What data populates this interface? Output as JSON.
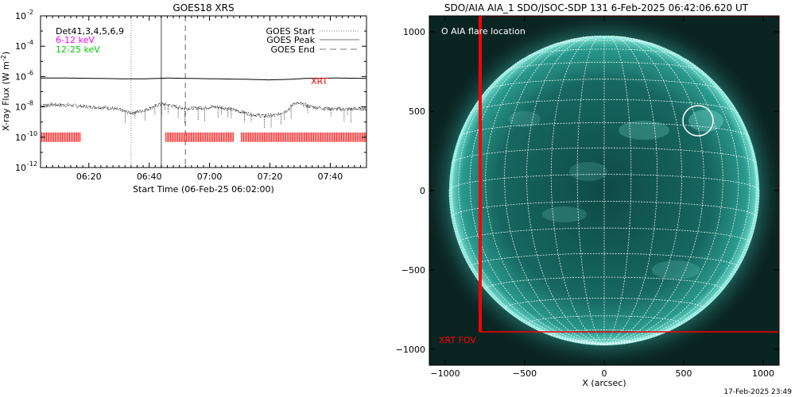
{
  "chart_data": [
    {
      "type": "line",
      "title": "GOES18 XRS",
      "xlabel": "Start Time (06-Feb-25 06:02:00)",
      "ylabel": "X-ray Flux (W m",
      "ylabel_sup": "-2",
      "ylabel_end": ")",
      "yscale": "log",
      "ylim_exp": [
        -12,
        -2
      ],
      "xlim_min": [
        2,
        110
      ],
      "x_ticks": [
        {
          "min": 18,
          "label": "06:20"
        },
        {
          "min": 38,
          "label": "06:40"
        },
        {
          "min": 58,
          "label": "07:00"
        },
        {
          "min": 78,
          "label": "07:20"
        },
        {
          "min": 98,
          "label": "07:40"
        }
      ],
      "y_ticks": [
        {
          "exp": -2,
          "label": "10",
          "sup": "-2"
        },
        {
          "exp": -4,
          "label": "10",
          "sup": "-4"
        },
        {
          "exp": -6,
          "label": "10",
          "sup": "-6"
        },
        {
          "exp": -8,
          "label": "10",
          "sup": "-8"
        },
        {
          "exp": -10,
          "label": "10",
          "sup": "-10"
        },
        {
          "exp": -12,
          "label": "10",
          "sup": "-12"
        }
      ],
      "channels": [
        {
          "label": "Det41,3,4,5,6,9",
          "color": "#000000"
        },
        {
          "label": "6-12 keV",
          "color": "#ff00ff"
        },
        {
          "label": "12-25 keV",
          "color": "#00cc00"
        }
      ],
      "legend": [
        {
          "label": "GOES Start",
          "style": "dotted"
        },
        {
          "label": "GOES Peak",
          "style": "solid"
        },
        {
          "label": "GOES End",
          "style": "dashed"
        }
      ],
      "series": [
        {
          "name": "",
          "kind": "long",
          "x": [
            2,
            10,
            20,
            30,
            36,
            40,
            44,
            50,
            60,
            70,
            78,
            85,
            90,
            100,
            110
          ],
          "y_exp": [
            -6.1,
            -6.1,
            -6.12,
            -6.15,
            -6.15,
            -6.13,
            -6.1,
            -6.12,
            -6.15,
            -6.18,
            -6.22,
            -6.18,
            -6.12,
            -6.1,
            -6.12
          ]
        },
        {
          "name": "",
          "kind": "short",
          "x": [
            2,
            6,
            12,
            18,
            24,
            28,
            32,
            36,
            40,
            42,
            44,
            48,
            52,
            56,
            60,
            64,
            68,
            72,
            76,
            80,
            84,
            86,
            88,
            92,
            96,
            100,
            104,
            110
          ],
          "y_exp": [
            -7.9,
            -7.85,
            -7.9,
            -8.0,
            -8.05,
            -8.2,
            -8.4,
            -8.25,
            -7.95,
            -7.8,
            -7.85,
            -8.05,
            -8.1,
            -8.05,
            -8.0,
            -8.1,
            -8.3,
            -8.5,
            -8.6,
            -8.55,
            -8.2,
            -7.75,
            -7.8,
            -8.0,
            -8.1,
            -8.15,
            -8.15,
            -8.1
          ]
        }
      ],
      "events": {
        "start_min": 32,
        "peak_min": 42,
        "end_min": 50
      },
      "xrt_label": "XRT",
      "xrt_color": "#ff0000",
      "xrt_exp": -10.0,
      "xrt_segments": [
        [
          2,
          15.5
        ],
        [
          43.5,
          66
        ],
        [
          68.5,
          110
        ]
      ]
    },
    {
      "type": "image",
      "title": "SDO/AIA AIA_1 SDO/JSOC-SDP 131  6-Feb-2025 06:42:06.620 UT",
      "xlabel": "X (arcsec)",
      "xlim": [
        -1100,
        1100
      ],
      "ylim": [
        -1100,
        1100
      ],
      "x_ticks": [
        -1000,
        -500,
        0,
        500,
        1000
      ],
      "y_ticks": [
        -1000,
        -500,
        0,
        500,
        1000
      ],
      "flare_label": "O AIA flare location",
      "flare_center": [
        590,
        440
      ],
      "flare_radius": 95,
      "fov_label": "XRT FOV",
      "fov": {
        "xmin": -780,
        "xmax": 1100,
        "ymin": -890,
        "ymax": 1100
      },
      "fov_color": "#ff0000",
      "sun_radius": 975
    }
  ],
  "footer": "17-Feb-2025 23:49"
}
